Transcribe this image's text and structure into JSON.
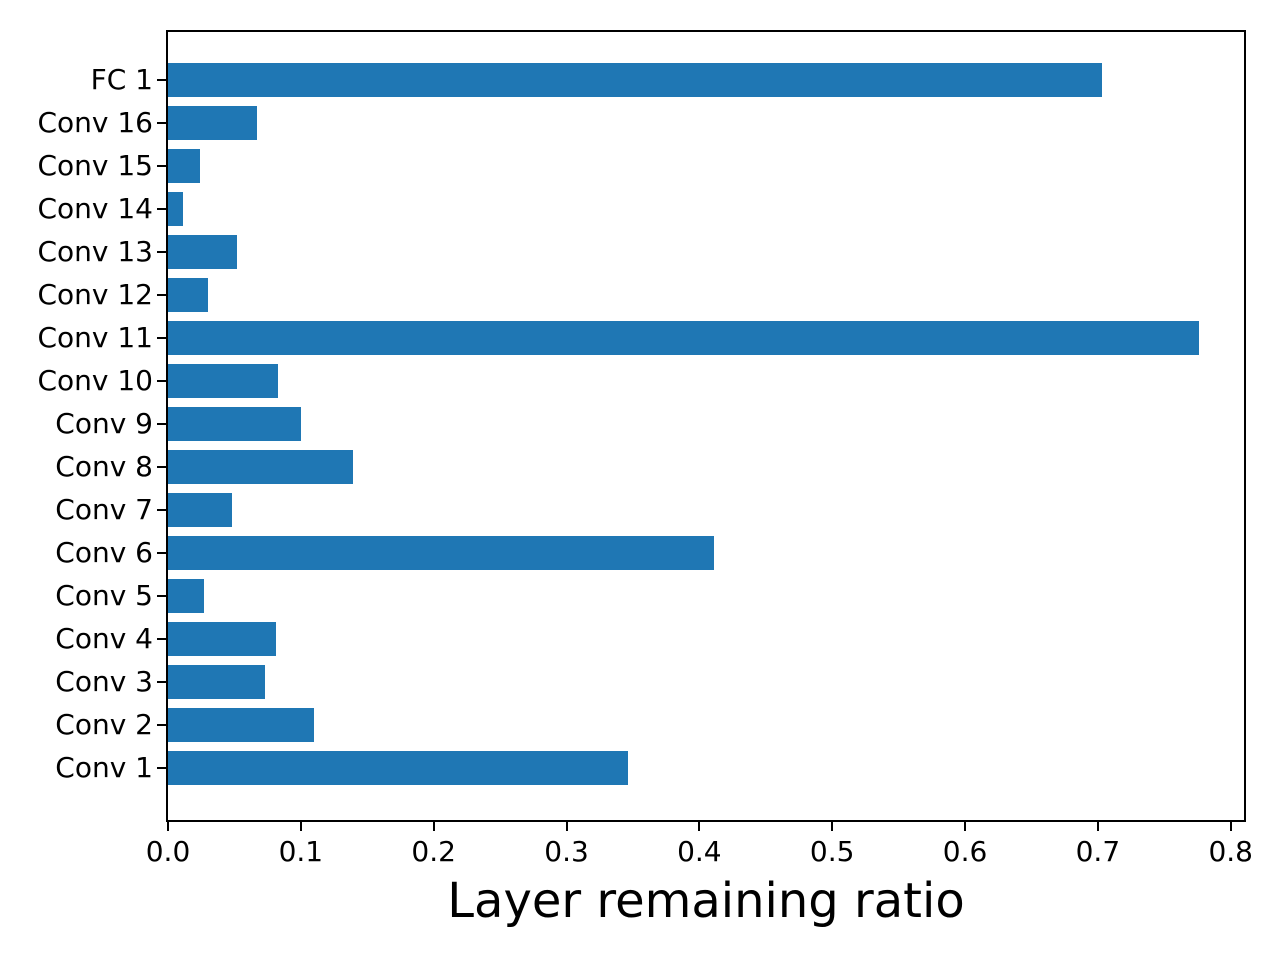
{
  "chart_data": {
    "type": "bar",
    "orientation": "horizontal",
    "title": "",
    "xlabel": "Layer remaining ratio",
    "ylabel": "",
    "xlim": [
      0,
      0.81
    ],
    "xtick_labels": [
      "0.0",
      "0.1",
      "0.2",
      "0.3",
      "0.4",
      "0.5",
      "0.6",
      "0.7",
      "0.8"
    ],
    "xtick_values": [
      0.0,
      0.1,
      0.2,
      0.3,
      0.4,
      0.5,
      0.6,
      0.7,
      0.8
    ],
    "categories": [
      "FC 1",
      "Conv 16",
      "Conv 15",
      "Conv 14",
      "Conv 13",
      "Conv 12",
      "Conv 11",
      "Conv 10",
      "Conv 9",
      "Conv 8",
      "Conv 7",
      "Conv 6",
      "Conv 5",
      "Conv 4",
      "Conv 3",
      "Conv 2",
      "Conv 1"
    ],
    "category_order": "top-to-bottom",
    "values": [
      0.703,
      0.067,
      0.024,
      0.011,
      0.052,
      0.03,
      0.776,
      0.083,
      0.1,
      0.139,
      0.048,
      0.411,
      0.027,
      0.081,
      0.073,
      0.11,
      0.346
    ],
    "bar_color": "#1f77b4",
    "axis_color": "#000000",
    "grid": false,
    "legend": null
  }
}
